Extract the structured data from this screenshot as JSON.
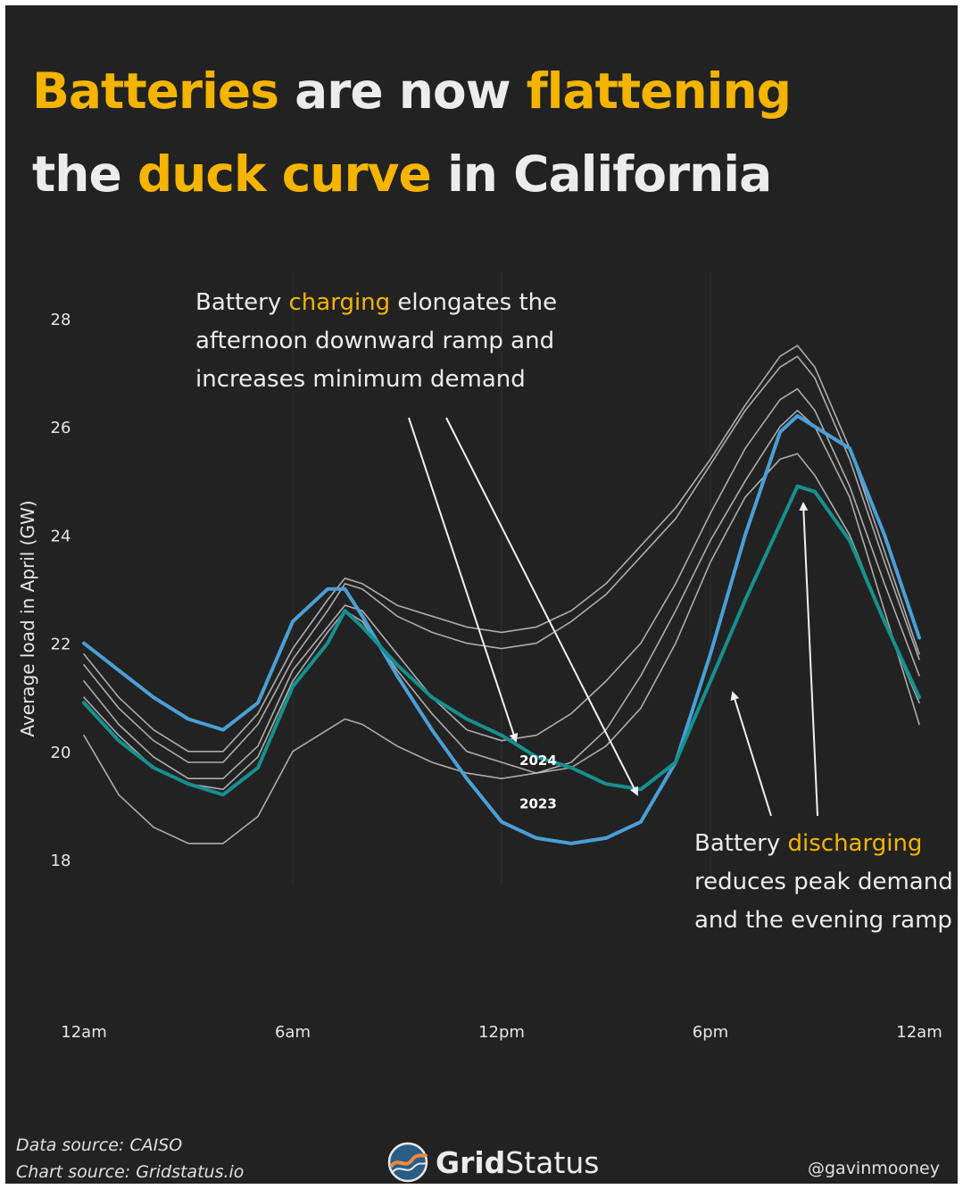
{
  "title": {
    "w1": "Batteries",
    "w2": " are now ",
    "w3": "flattening",
    "w4": "the ",
    "w5": "duck curve",
    "w6": " in California"
  },
  "annotations": {
    "charging": {
      "pre": "Battery ",
      "key": "charging",
      "post": " elongates the afternoon downward ramp and increases minimum demand"
    },
    "discharging": {
      "pre": "Battery ",
      "key": "discharging",
      "post": " reduces peak demand and the evening ramp"
    }
  },
  "footer": {
    "data_source": "Data source: CAISO",
    "chart_source": "Chart source: Gridstatus.io",
    "logo_bold": "Grid",
    "logo_light": "Status",
    "handle": "@gavinmooney"
  },
  "colors": {
    "background": "#222222",
    "accent": "#f4b400",
    "series_2023": "#4a9fd6",
    "series_2024": "#16908f",
    "other_years": "#cfcfcf"
  },
  "chart_data": {
    "type": "line",
    "title": "Batteries are now flattening the duck curve in California",
    "ylabel": "Average load in April (GW)",
    "xlabel": "",
    "ylim": [
      16.6,
      29.2
    ],
    "xlim": [
      0,
      24
    ],
    "yticks": [
      18,
      20,
      22,
      24,
      26,
      28
    ],
    "xticks": [
      {
        "hour": 0,
        "label": "12am"
      },
      {
        "hour": 6,
        "label": "6am"
      },
      {
        "hour": 12,
        "label": "12pm"
      },
      {
        "hour": 18,
        "label": "6pm"
      },
      {
        "hour": 24,
        "label": "12am"
      }
    ],
    "x": [
      0,
      1,
      2,
      3,
      4,
      5,
      6,
      7,
      7.5,
      8,
      9,
      10,
      11,
      12,
      13,
      14,
      15,
      16,
      17,
      18,
      19,
      20,
      20.5,
      21,
      22,
      23,
      24
    ],
    "series": [
      {
        "name": "other year a",
        "label": "",
        "highlight": false,
        "values": [
          21.8,
          21.0,
          20.4,
          20.0,
          20.0,
          20.7,
          21.9,
          22.8,
          23.2,
          23.1,
          22.7,
          22.5,
          22.3,
          22.2,
          22.3,
          22.6,
          23.1,
          23.8,
          24.5,
          25.4,
          26.4,
          27.3,
          27.5,
          27.1,
          25.6,
          23.7,
          21.8
        ]
      },
      {
        "name": "other year b",
        "label": "",
        "highlight": false,
        "values": [
          21.6,
          20.8,
          20.2,
          19.8,
          19.8,
          20.5,
          21.7,
          22.6,
          23.1,
          23.0,
          22.5,
          22.2,
          22.0,
          21.9,
          22.0,
          22.4,
          22.9,
          23.6,
          24.3,
          25.3,
          26.3,
          27.1,
          27.3,
          26.9,
          25.4,
          23.5,
          21.7
        ]
      },
      {
        "name": "other year c",
        "label": "",
        "highlight": false,
        "values": [
          21.3,
          20.5,
          19.9,
          19.5,
          19.5,
          20.1,
          21.5,
          22.3,
          22.7,
          22.6,
          21.8,
          21.0,
          20.4,
          20.2,
          20.3,
          20.7,
          21.3,
          22.0,
          23.1,
          24.4,
          25.6,
          26.5,
          26.7,
          26.3,
          24.9,
          23.1,
          21.4
        ]
      },
      {
        "name": "other year d",
        "label": "",
        "highlight": false,
        "values": [
          21.0,
          20.3,
          19.7,
          19.4,
          19.3,
          19.9,
          21.3,
          22.2,
          22.6,
          22.4,
          21.5,
          20.7,
          20.0,
          19.8,
          19.6,
          19.7,
          20.1,
          20.8,
          22.0,
          23.5,
          24.7,
          25.4,
          25.5,
          25.1,
          24.0,
          22.4,
          20.9
        ]
      },
      {
        "name": "other year e",
        "label": "",
        "highlight": false,
        "values": [
          20.3,
          19.2,
          18.6,
          18.3,
          18.3,
          18.8,
          20.0,
          20.4,
          20.6,
          20.5,
          20.1,
          19.8,
          19.6,
          19.5,
          19.6,
          19.8,
          20.4,
          21.4,
          22.6,
          23.9,
          25.0,
          26.0,
          26.3,
          26.0,
          24.7,
          22.6,
          20.5
        ]
      },
      {
        "name": "2023",
        "label": "2023",
        "highlight": true,
        "values": [
          22.0,
          21.5,
          21.0,
          20.6,
          20.4,
          20.9,
          22.4,
          23.0,
          23.0,
          22.5,
          21.4,
          20.4,
          19.5,
          18.7,
          18.4,
          18.3,
          18.4,
          18.7,
          19.8,
          21.8,
          24.0,
          25.9,
          26.2,
          26.0,
          25.6,
          24.0,
          22.1
        ]
      },
      {
        "name": "2024",
        "label": "2024",
        "highlight": true,
        "values": [
          20.9,
          20.2,
          19.7,
          19.4,
          19.2,
          19.7,
          21.2,
          22.0,
          22.6,
          22.3,
          21.6,
          21.0,
          20.6,
          20.3,
          19.9,
          19.7,
          19.4,
          19.3,
          19.8,
          21.3,
          22.8,
          24.2,
          24.9,
          24.8,
          23.9,
          22.4,
          21.0
        ]
      }
    ]
  }
}
